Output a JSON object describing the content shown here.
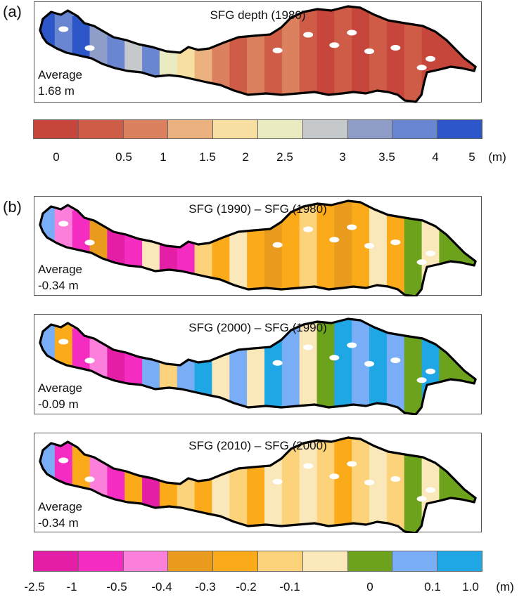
{
  "panel_a": {
    "letter": "(a)",
    "title": "SFG depth (1980)",
    "average_label": "Average",
    "average_value": "1.68 m",
    "colors": [
      "#c6463c",
      "#cf5c46",
      "#db8160",
      "#ebb27f",
      "#f6dfa0",
      "#ebebc2",
      "#c6c9cc",
      "#8e9ec8",
      "#6a86d0",
      "#2d57c9"
    ],
    "map_cells": [
      {
        "t": 0.02,
        "c": 9
      },
      {
        "t": 0.06,
        "c": 8
      },
      {
        "t": 0.1,
        "c": 9
      },
      {
        "t": 0.14,
        "c": 7
      },
      {
        "t": 0.18,
        "c": 8
      },
      {
        "t": 0.22,
        "c": 6
      },
      {
        "t": 0.26,
        "c": 8
      },
      {
        "t": 0.3,
        "c": 5
      },
      {
        "t": 0.34,
        "c": 4
      },
      {
        "t": 0.38,
        "c": 3
      },
      {
        "t": 0.42,
        "c": 2
      },
      {
        "t": 0.46,
        "c": 1
      },
      {
        "t": 0.5,
        "c": 2
      },
      {
        "t": 0.54,
        "c": 1
      },
      {
        "t": 0.58,
        "c": 2
      },
      {
        "t": 0.62,
        "c": 1
      },
      {
        "t": 0.66,
        "c": 0
      },
      {
        "t": 0.7,
        "c": 1
      },
      {
        "t": 0.74,
        "c": 0
      },
      {
        "t": 0.78,
        "c": 1
      },
      {
        "t": 0.82,
        "c": 0
      },
      {
        "t": 0.86,
        "c": 1
      },
      {
        "t": 0.9,
        "c": 0
      },
      {
        "t": 0.94,
        "c": 0
      },
      {
        "t": 0.98,
        "c": 0
      }
    ]
  },
  "colorbar_a": {
    "ticks": [
      "0",
      "0.5",
      "1",
      "1.5",
      "2",
      "2.5",
      "3",
      "3.5",
      "4",
      "5"
    ],
    "unit": "(m)"
  },
  "panel_b": {
    "letter": "(b)",
    "colors": [
      "#e41ea6",
      "#f52cc2",
      "#fc7fdc",
      "#e99b1e",
      "#fbab1a",
      "#fcd37a",
      "#fbe8ba",
      "#6da21c",
      "#79aef7",
      "#1fa6e5"
    ],
    "maps": [
      {
        "title": "SFG (1990) – SFG (1980)",
        "average_label": "Average",
        "average_value": "-0.34 m",
        "cells": [
          {
            "t": 0.02,
            "c": 8
          },
          {
            "t": 0.06,
            "c": 2
          },
          {
            "t": 0.1,
            "c": 1
          },
          {
            "t": 0.14,
            "c": 3
          },
          {
            "t": 0.18,
            "c": 0
          },
          {
            "t": 0.22,
            "c": 1
          },
          {
            "t": 0.26,
            "c": 6
          },
          {
            "t": 0.3,
            "c": 0
          },
          {
            "t": 0.34,
            "c": 1
          },
          {
            "t": 0.38,
            "c": 5
          },
          {
            "t": 0.42,
            "c": 4
          },
          {
            "t": 0.46,
            "c": 6
          },
          {
            "t": 0.5,
            "c": 4
          },
          {
            "t": 0.54,
            "c": 3
          },
          {
            "t": 0.58,
            "c": 4
          },
          {
            "t": 0.62,
            "c": 5
          },
          {
            "t": 0.66,
            "c": 4
          },
          {
            "t": 0.7,
            "c": 3
          },
          {
            "t": 0.74,
            "c": 4
          },
          {
            "t": 0.78,
            "c": 6
          },
          {
            "t": 0.82,
            "c": 4
          },
          {
            "t": 0.86,
            "c": 7
          },
          {
            "t": 0.9,
            "c": 6
          },
          {
            "t": 0.94,
            "c": 7
          },
          {
            "t": 0.98,
            "c": 7
          }
        ]
      },
      {
        "title": "SFG (2000) – SFG (1990)",
        "average_label": "Average",
        "average_value": "-0.09 m",
        "cells": [
          {
            "t": 0.02,
            "c": 8
          },
          {
            "t": 0.06,
            "c": 4
          },
          {
            "t": 0.1,
            "c": 1
          },
          {
            "t": 0.14,
            "c": 2
          },
          {
            "t": 0.18,
            "c": 0
          },
          {
            "t": 0.22,
            "c": 1
          },
          {
            "t": 0.26,
            "c": 8
          },
          {
            "t": 0.3,
            "c": 5
          },
          {
            "t": 0.34,
            "c": 8
          },
          {
            "t": 0.38,
            "c": 9
          },
          {
            "t": 0.42,
            "c": 6
          },
          {
            "t": 0.46,
            "c": 8
          },
          {
            "t": 0.5,
            "c": 6
          },
          {
            "t": 0.54,
            "c": 9
          },
          {
            "t": 0.58,
            "c": 8
          },
          {
            "t": 0.62,
            "c": 6
          },
          {
            "t": 0.66,
            "c": 7
          },
          {
            "t": 0.7,
            "c": 9
          },
          {
            "t": 0.74,
            "c": 8
          },
          {
            "t": 0.78,
            "c": 9
          },
          {
            "t": 0.82,
            "c": 8
          },
          {
            "t": 0.86,
            "c": 7
          },
          {
            "t": 0.9,
            "c": 9
          },
          {
            "t": 0.94,
            "c": 7
          },
          {
            "t": 0.98,
            "c": 7
          }
        ]
      },
      {
        "title": "SFG (2010) – SFG (2000)",
        "average_label": "Average",
        "average_value": "-0.34 m",
        "cells": [
          {
            "t": 0.02,
            "c": 8
          },
          {
            "t": 0.06,
            "c": 1
          },
          {
            "t": 0.1,
            "c": 4
          },
          {
            "t": 0.14,
            "c": 2
          },
          {
            "t": 0.18,
            "c": 1
          },
          {
            "t": 0.22,
            "c": 4
          },
          {
            "t": 0.26,
            "c": 0
          },
          {
            "t": 0.3,
            "c": 4
          },
          {
            "t": 0.34,
            "c": 5
          },
          {
            "t": 0.38,
            "c": 4
          },
          {
            "t": 0.42,
            "c": 6
          },
          {
            "t": 0.46,
            "c": 5
          },
          {
            "t": 0.5,
            "c": 4
          },
          {
            "t": 0.54,
            "c": 6
          },
          {
            "t": 0.58,
            "c": 5
          },
          {
            "t": 0.62,
            "c": 6
          },
          {
            "t": 0.66,
            "c": 5
          },
          {
            "t": 0.7,
            "c": 4
          },
          {
            "t": 0.74,
            "c": 5
          },
          {
            "t": 0.78,
            "c": 6
          },
          {
            "t": 0.82,
            "c": 5
          },
          {
            "t": 0.86,
            "c": 7
          },
          {
            "t": 0.9,
            "c": 6
          },
          {
            "t": 0.94,
            "c": 7
          },
          {
            "t": 0.98,
            "c": 7
          }
        ]
      }
    ]
  },
  "colorbar_b": {
    "ticks": [
      "-2.5",
      "-1",
      "-0.5",
      "-0.4",
      "-0.3",
      "-0.2",
      "-0.1",
      "0",
      "0.1",
      "1.0"
    ],
    "unit": "(m)"
  }
}
